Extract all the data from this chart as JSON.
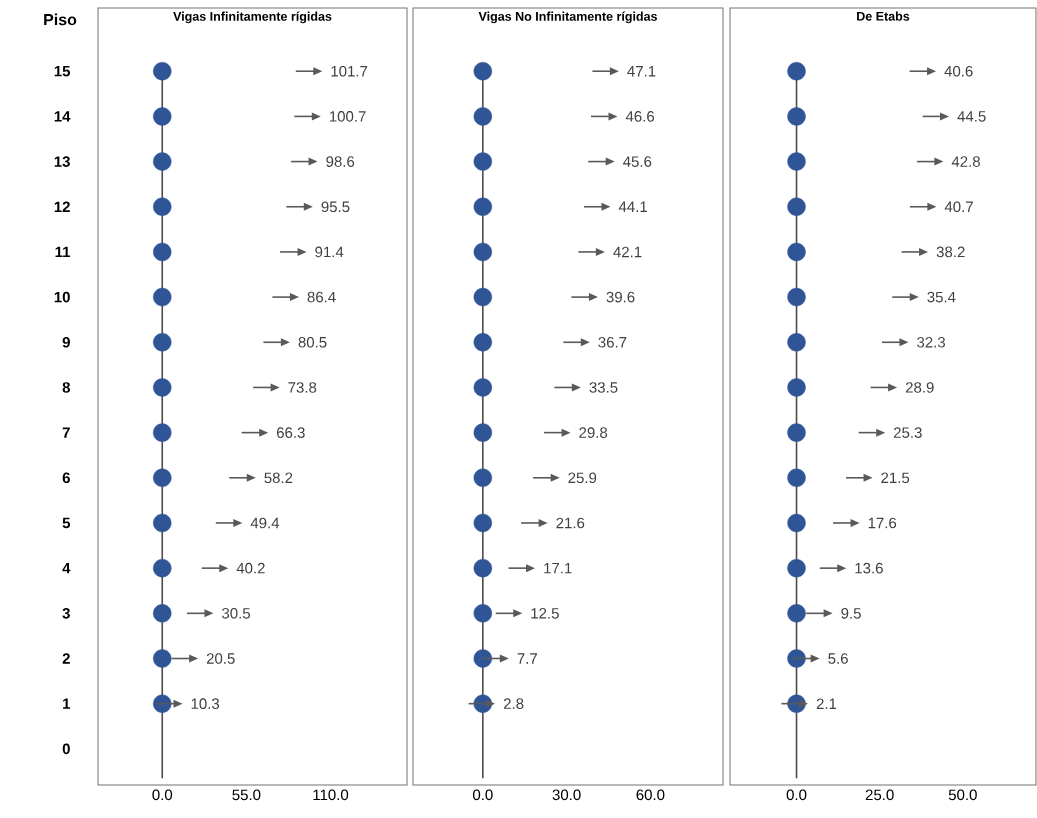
{
  "chart_data": [
    {
      "type": "scatter",
      "orientation": "horizontal",
      "title": "Vigas Infinitamente rígidas",
      "ylabel": "Piso",
      "categories": [
        "15",
        "14",
        "13",
        "12",
        "11",
        "10",
        "9",
        "8",
        "7",
        "6",
        "5",
        "4",
        "3",
        "2",
        "1",
        "0"
      ],
      "xlim": [
        -42,
        160
      ],
      "xticks": [
        {
          "value": 0,
          "label": "0.0"
        },
        {
          "value": 55,
          "label": "55.0"
        },
        {
          "value": 110,
          "label": "110.0"
        }
      ],
      "grid": false,
      "ref_lines": [
        {
          "axis": "x",
          "value": 0
        }
      ],
      "series": [
        {
          "color": "#2f5597",
          "marker": "circle",
          "values": [
            0,
            0,
            0,
            0,
            0,
            0,
            0,
            0,
            0,
            0,
            0,
            0,
            0,
            0,
            0,
            null
          ]
        },
        {
          "color": "#595959",
          "marker": "triangle",
          "values": [
            101.7,
            100.7,
            98.6,
            95.5,
            91.4,
            86.4,
            80.5,
            73.8,
            66.3,
            58.2,
            49.4,
            40.2,
            30.5,
            20.5,
            10.3,
            null
          ],
          "value_labels": [
            "101.7",
            "100.7",
            "98.6",
            "95.5",
            "91.4",
            "86.4",
            "80.5",
            "73.8",
            "66.3",
            "58.2",
            "49.4",
            "40.2",
            "30.5",
            "20.5",
            "10.3",
            null
          ]
        }
      ]
    },
    {
      "type": "scatter",
      "orientation": "horizontal",
      "title": "Vigas No Infinitamente rígidas",
      "tick_labels": "x",
      "categories": [
        "15",
        "14",
        "13",
        "12",
        "11",
        "10",
        "9",
        "8",
        "7",
        "6",
        "5",
        "4",
        "3",
        "2",
        "1",
        "0"
      ],
      "xlim": [
        -25,
        86
      ],
      "xticks": [
        {
          "value": 0,
          "label": "0.0"
        },
        {
          "value": 30,
          "label": "30.0"
        },
        {
          "value": 60,
          "label": "60.0"
        }
      ],
      "grid": false,
      "ref_lines": [
        {
          "axis": "x",
          "value": 0
        }
      ],
      "series": [
        {
          "color": "#2f5597",
          "marker": "circle",
          "values": [
            0,
            0,
            0,
            0,
            0,
            0,
            0,
            0,
            0,
            0,
            0,
            0,
            0,
            0,
            0,
            null
          ]
        },
        {
          "color": "#595959",
          "marker": "triangle",
          "values": [
            47.1,
            46.6,
            45.6,
            44.1,
            42.1,
            39.6,
            36.7,
            33.5,
            29.8,
            25.9,
            21.6,
            17.1,
            12.5,
            7.7,
            2.8,
            null
          ],
          "value_labels": [
            "47.1",
            "46.6",
            "45.6",
            "44.1",
            "42.1",
            "39.6",
            "36.7",
            "33.5",
            "29.8",
            "25.9",
            "21.6",
            "17.1",
            "12.5",
            "7.7",
            "2.8",
            null
          ]
        }
      ]
    },
    {
      "type": "scatter",
      "orientation": "horizontal",
      "title": "De Etabs",
      "tick_labels": "x",
      "categories": [
        "15",
        "14",
        "13",
        "12",
        "11",
        "10",
        "9",
        "8",
        "7",
        "6",
        "5",
        "4",
        "3",
        "2",
        "1",
        "0"
      ],
      "xlim": [
        -20,
        72
      ],
      "xticks": [
        {
          "value": 0,
          "label": "0.0"
        },
        {
          "value": 25,
          "label": "25.0"
        },
        {
          "value": 50,
          "label": "50.0"
        }
      ],
      "grid": false,
      "ref_lines": [
        {
          "axis": "x",
          "value": 0
        }
      ],
      "series": [
        {
          "color": "#2f5597",
          "marker": "circle",
          "values": [
            0,
            0,
            0,
            0,
            0,
            0,
            0,
            0,
            0,
            0,
            0,
            0,
            0,
            0,
            0,
            null
          ]
        },
        {
          "color": "#595959",
          "marker": "triangle",
          "values": [
            40.6,
            44.5,
            42.8,
            40.7,
            38.2,
            35.4,
            32.3,
            28.9,
            25.3,
            21.5,
            17.6,
            13.6,
            9.5,
            5.6,
            2.1,
            null
          ],
          "value_labels": [
            "40.6",
            "44.5",
            "42.8",
            "40.7",
            "38.2",
            "35.4",
            "32.3",
            "28.9",
            "25.3",
            "21.5",
            "17.6",
            "13.6",
            "9.5",
            "5.6",
            "2.1",
            null
          ]
        }
      ]
    }
  ]
}
